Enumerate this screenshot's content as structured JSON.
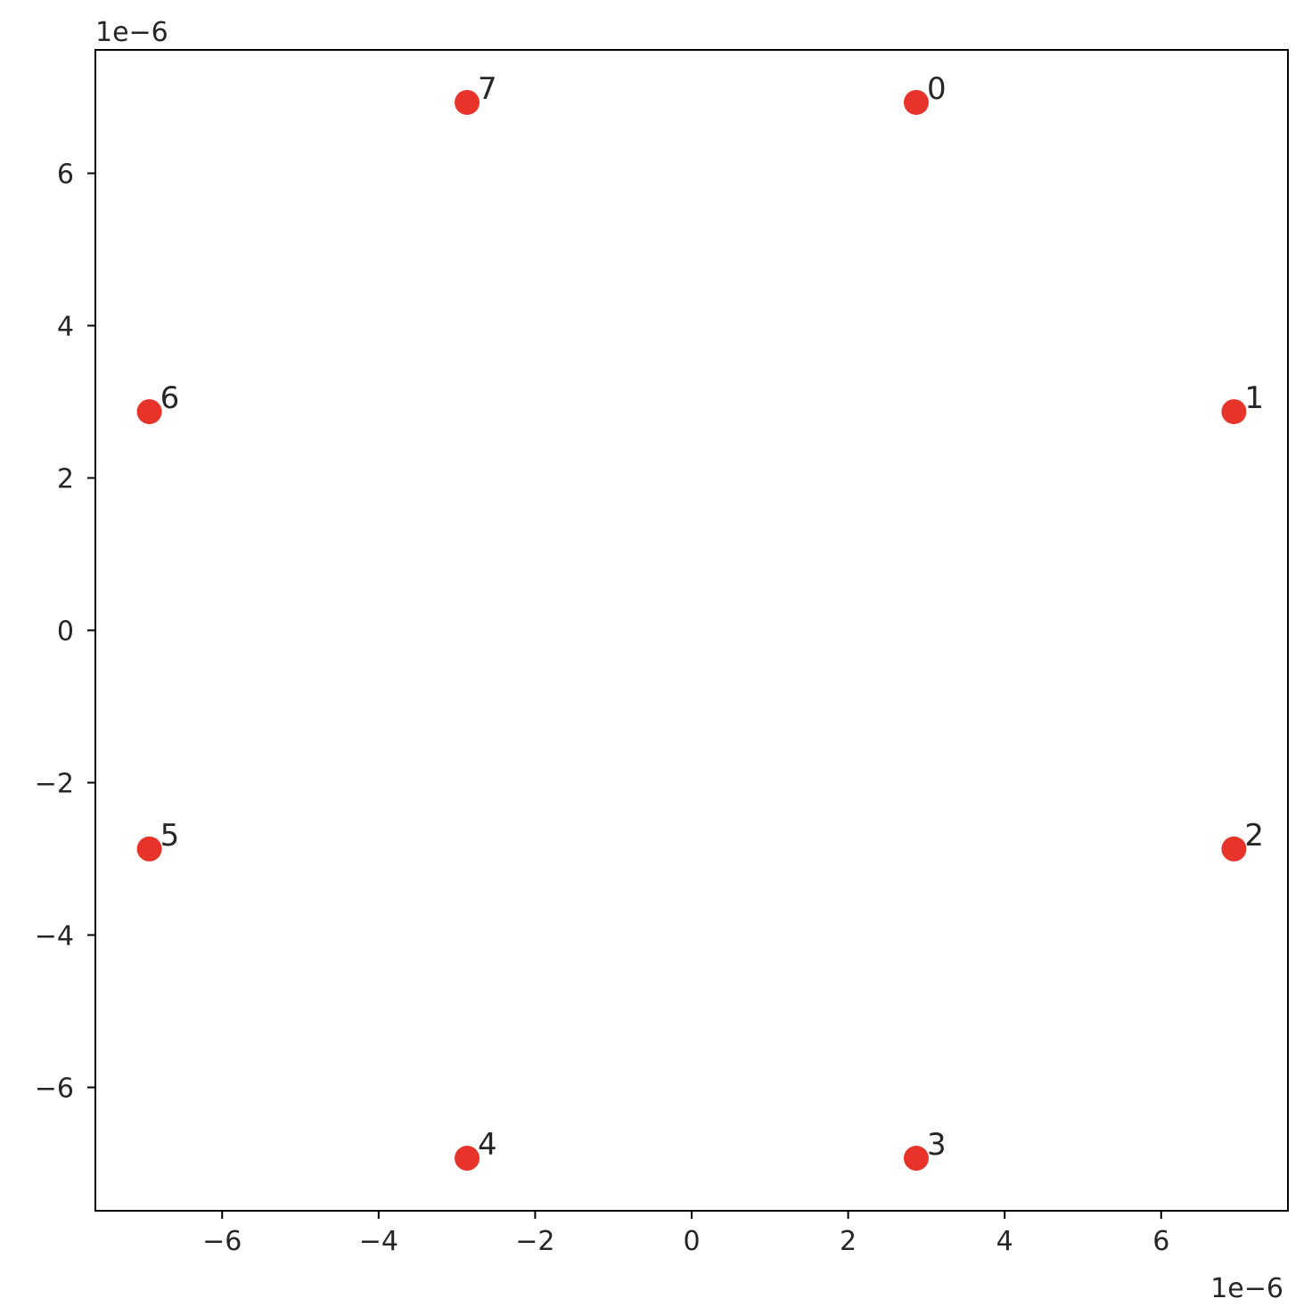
{
  "chart_data": {
    "type": "scatter",
    "title": "",
    "xlabel": "",
    "ylabel": "",
    "x_offset_text": "1e−6",
    "y_offset_text": "1e−6",
    "xlim": [
      -7.62,
      7.62
    ],
    "ylim": [
      -7.62,
      7.62
    ],
    "xticks": [
      -6,
      -4,
      -2,
      0,
      2,
      4,
      6
    ],
    "yticks": [
      -6,
      -4,
      -2,
      0,
      2,
      4,
      6
    ],
    "xtick_labels": [
      "−6",
      "−4",
      "−2",
      "0",
      "2",
      "4",
      "6"
    ],
    "ytick_labels": [
      "−6",
      "−4",
      "−2",
      "0",
      "2",
      "4",
      "6"
    ],
    "grid": false,
    "marker_color": "#e8332a",
    "points": [
      {
        "label": "0",
        "x": 2.87,
        "y": 6.93
      },
      {
        "label": "1",
        "x": 6.93,
        "y": 2.87
      },
      {
        "label": "2",
        "x": 6.93,
        "y": -2.87
      },
      {
        "label": "3",
        "x": 2.87,
        "y": -6.93
      },
      {
        "label": "4",
        "x": -2.87,
        "y": -6.93
      },
      {
        "label": "5",
        "x": -6.93,
        "y": -2.87
      },
      {
        "label": "6",
        "x": -6.93,
        "y": 2.87
      },
      {
        "label": "7",
        "x": -2.87,
        "y": 6.93
      }
    ]
  }
}
